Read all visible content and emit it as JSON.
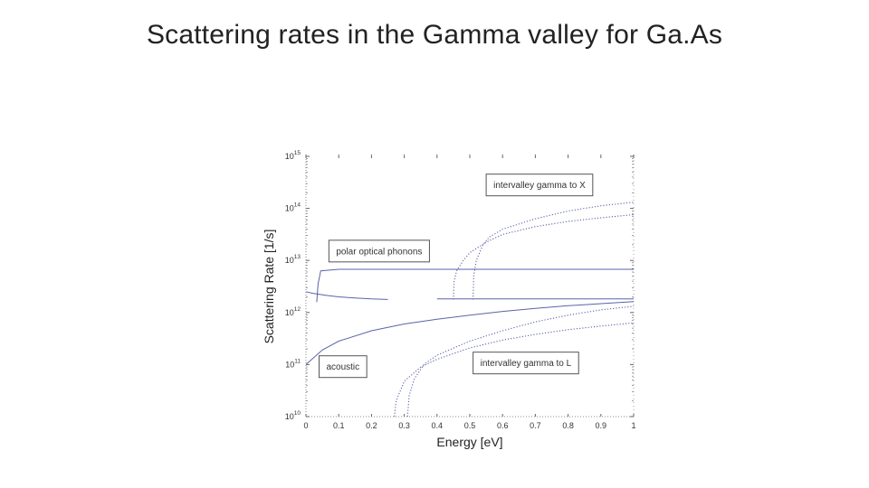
{
  "slide": {
    "title": "Scattering rates in the Gamma valley for Ga.As"
  },
  "colors": {
    "series": "#5b63a8",
    "axes": "#666666",
    "box": "#555555"
  },
  "chart_data": {
    "type": "line",
    "title": "",
    "xlabel": "Energy [eV]",
    "ylabel": "Scattering Rate [1/s]",
    "xlim": [
      0,
      1
    ],
    "ylim_exponent": [
      10,
      15
    ],
    "yscale": "log",
    "grid": false,
    "x_ticks": [
      {
        "value": 0,
        "label": "0"
      },
      {
        "value": 0.1,
        "label": "0.1"
      },
      {
        "value": 0.2,
        "label": "0.2"
      },
      {
        "value": 0.3,
        "label": "0.3"
      },
      {
        "value": 0.4,
        "label": "0.4"
      },
      {
        "value": 0.5,
        "label": "0.5"
      },
      {
        "value": 0.6,
        "label": "0.6"
      },
      {
        "value": 0.7,
        "label": "0.7"
      },
      {
        "value": 0.8,
        "label": "0.8"
      },
      {
        "value": 0.9,
        "label": "0.9"
      },
      {
        "value": 1,
        "label": "1"
      }
    ],
    "y_ticks": [
      {
        "exp": 10,
        "base": "10",
        "sup": "10"
      },
      {
        "exp": 11,
        "base": "10",
        "sup": "11"
      },
      {
        "exp": 12,
        "base": "10",
        "sup": "12"
      },
      {
        "exp": 13,
        "base": "10",
        "sup": "13"
      },
      {
        "exp": 14,
        "base": "10",
        "sup": "14"
      },
      {
        "exp": 15,
        "base": "10",
        "sup": "15"
      }
    ],
    "series": [
      {
        "style": "solid",
        "x": [
          0.0,
          0.05,
          0.1,
          0.2,
          0.3,
          0.4,
          0.5,
          0.6,
          0.7,
          0.8,
          0.9,
          1.0
        ],
        "log10_y": [
          11.0,
          11.28,
          11.45,
          11.65,
          11.78,
          11.87,
          11.95,
          12.02,
          12.08,
          12.13,
          12.17,
          12.21
        ]
      },
      {
        "style": "solid",
        "x": [
          0.0,
          0.02,
          0.06,
          0.1,
          0.15,
          0.2,
          0.25
        ],
        "log10_y": [
          12.4,
          12.37,
          12.33,
          12.3,
          12.28,
          12.26,
          12.25
        ]
      },
      {
        "style": "solid",
        "x": [
          0.4,
          0.5,
          0.6,
          0.7,
          0.8,
          0.9,
          1.0
        ],
        "log10_y": [
          12.26,
          12.26,
          12.26,
          12.26,
          12.26,
          12.26,
          12.26
        ]
      },
      {
        "style": "solid",
        "x": [
          0.033,
          0.037,
          0.045,
          0.1,
          0.2,
          0.3,
          0.4,
          0.5,
          0.6,
          0.7,
          0.8,
          0.9,
          1.0
        ],
        "log10_y": [
          12.2,
          12.55,
          12.8,
          12.83,
          12.83,
          12.83,
          12.83,
          12.83,
          12.83,
          12.83,
          12.83,
          12.83,
          12.83
        ]
      },
      {
        "style": "dotted",
        "x": [
          0.27,
          0.275,
          0.3,
          0.35,
          0.4,
          0.5,
          0.6,
          0.7,
          0.8,
          0.9,
          1.0
        ],
        "log10_y": [
          10.0,
          10.3,
          10.68,
          10.95,
          11.1,
          11.32,
          11.47,
          11.58,
          11.67,
          11.74,
          11.8
        ]
      },
      {
        "style": "dotted",
        "x": [
          0.31,
          0.315,
          0.33,
          0.36,
          0.4,
          0.5,
          0.6,
          0.7,
          0.8,
          0.9,
          1.0
        ],
        "log10_y": [
          10.0,
          10.4,
          10.72,
          11.0,
          11.18,
          11.45,
          11.65,
          11.82,
          11.95,
          12.05,
          12.12
        ]
      },
      {
        "style": "dotted",
        "x": [
          0.45,
          0.452,
          0.46,
          0.48,
          0.5,
          0.55,
          0.6,
          0.7,
          0.8,
          0.9,
          1.0
        ],
        "log10_y": [
          12.25,
          12.6,
          12.8,
          13.0,
          13.15,
          13.35,
          13.5,
          13.65,
          13.75,
          13.82,
          13.88
        ]
      },
      {
        "style": "dotted",
        "x": [
          0.51,
          0.512,
          0.52,
          0.54,
          0.56,
          0.6,
          0.7,
          0.8,
          0.9,
          1.0
        ],
        "log10_y": [
          12.25,
          12.7,
          13.0,
          13.3,
          13.45,
          13.6,
          13.8,
          13.95,
          14.05,
          14.12
        ]
      }
    ],
    "annotations": [
      {
        "text": "intervalley gamma to X",
        "x": 0.55,
        "log10_y": 14.45
      },
      {
        "text": "polar optical phonons",
        "x": 0.07,
        "log10_y": 13.18
      },
      {
        "text": "acoustic",
        "x": 0.04,
        "log10_y": 10.96
      },
      {
        "text": "intervalley gamma to L",
        "x": 0.51,
        "log10_y": 11.03
      }
    ]
  }
}
